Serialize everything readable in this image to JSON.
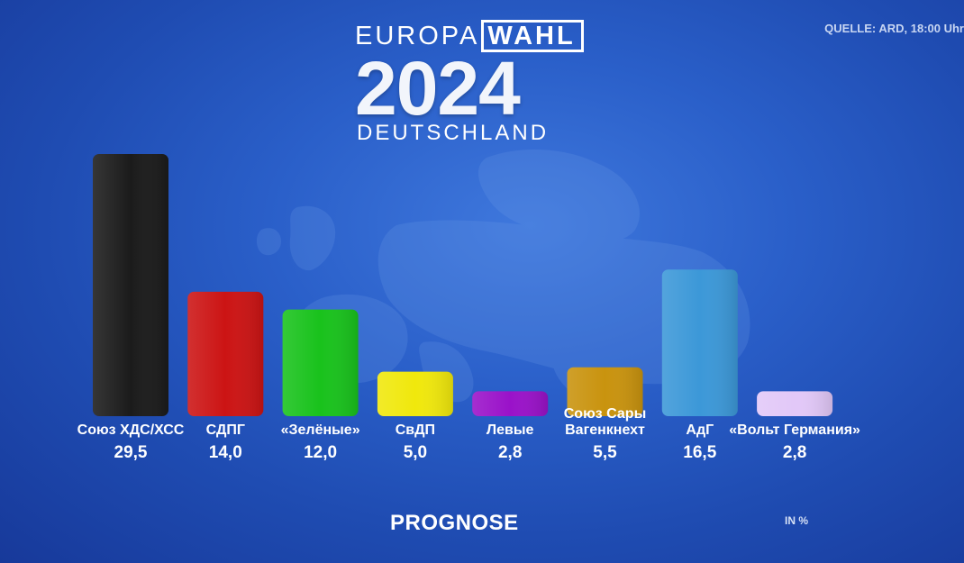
{
  "header": {
    "logo_europa": "EUROPA",
    "logo_wahl": "WAHL",
    "logo_year": "2024",
    "logo_country": "DEUTSCHLAND",
    "source": "QUELLE: ARD, 18:00 Uhr"
  },
  "footer": {
    "title": "PROGNOSE",
    "unit": "IN %"
  },
  "chart_data": {
    "type": "bar",
    "categories": [
      "Союз ХДС/ХСС",
      "СДПГ",
      "«Зелёные»",
      "СвДП",
      "Левые",
      "Союз Сары Вагенкнехт",
      "АдГ",
      "«Вольт Германия»"
    ],
    "category_lines": [
      [
        "Союз ХДС/ХСС"
      ],
      [
        "СДПГ"
      ],
      [
        "«Зелёные»"
      ],
      [
        "СвДП"
      ],
      [
        "Левые"
      ],
      [
        "Союз Сары",
        "Вагенкнехт"
      ],
      [
        "АдГ"
      ],
      [
        "«Вольт Германия»"
      ]
    ],
    "values": [
      29.5,
      14.0,
      12.0,
      5.0,
      2.8,
      5.5,
      16.5,
      2.8
    ],
    "value_labels": [
      "29,5",
      "14,0",
      "12,0",
      "5,0",
      "2,8",
      "5,5",
      "16,5",
      "2,8"
    ],
    "colors": [
      "#1b1b1b",
      "#cc1414",
      "#19c21c",
      "#f0e80c",
      "#9a12c9",
      "#c9930e",
      "#3c98d8",
      "#e2c8f8"
    ],
    "ylim": [
      0,
      29.5
    ],
    "grid": false,
    "legend": "none"
  }
}
